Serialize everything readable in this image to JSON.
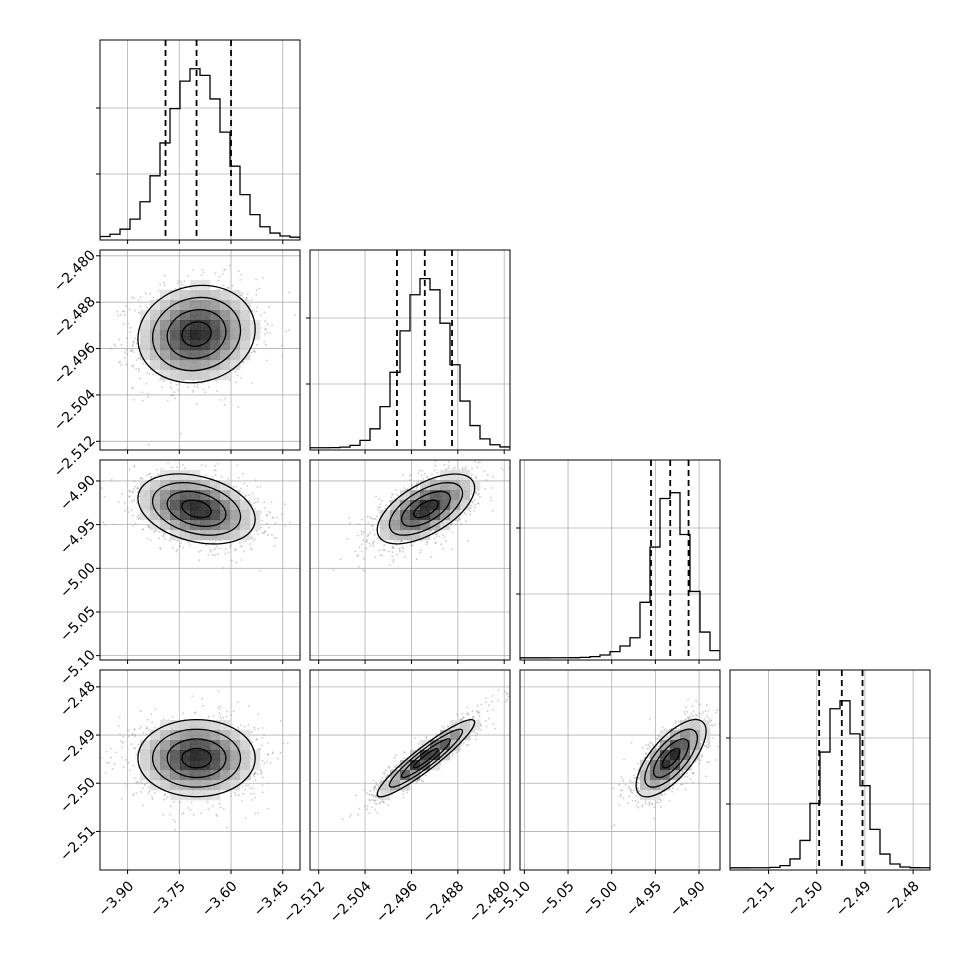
{
  "chart_data": {
    "type": "corner",
    "grid": true,
    "colors": {
      "ink": "#000000",
      "grid": "#b0b0b0",
      "scatter": "#8c8c8c"
    },
    "params": [
      {
        "range": [
          -3.98,
          -3.4
        ],
        "ticks": [
          -3.9,
          -3.75,
          -3.6,
          -3.45
        ],
        "tick_labels": [
          "−3.90",
          "−3.75",
          "−3.60",
          "−3.45"
        ],
        "mean": -3.7,
        "sd": 0.085,
        "quantiles": [
          -3.79,
          -3.7,
          -3.6
        ]
      },
      {
        "range": [
          -2.5135,
          -2.479
        ],
        "ticks": [
          -2.512,
          -2.504,
          -2.496,
          -2.488,
          -2.48
        ],
        "tick_labels": [
          "−2.512",
          "−2.504",
          "−2.496",
          "−2.488",
          "−2.480"
        ],
        "mean": -2.4935,
        "sd": 0.0042,
        "quantiles": [
          -2.4985,
          -2.4937,
          -2.489
        ]
      },
      {
        "range": [
          -5.105,
          -4.876
        ],
        "ticks": [
          -5.1,
          -5.05,
          -5.0,
          -4.95,
          -4.9
        ],
        "tick_labels": [
          "−5.10",
          "−5.05",
          "−5.00",
          "−4.95",
          "−4.90"
        ],
        "mean": -4.932,
        "sd": 0.02,
        "quantiles": [
          -4.955,
          -4.933,
          -4.912
        ]
      },
      {
        "range": [
          -2.518,
          -2.4765
        ],
        "ticks": [
          -2.51,
          -2.5,
          -2.49,
          -2.48
        ],
        "tick_labels": [
          "−2.51",
          "−2.50",
          "−2.49",
          "−2.48"
        ],
        "mean": -2.4948,
        "sd": 0.004,
        "quantiles": [
          -2.4995,
          -2.4948,
          -2.4905
        ]
      }
    ],
    "correlations": [
      {
        "x": 0,
        "y": 1,
        "rho": 0.1
      },
      {
        "x": 0,
        "y": 2,
        "rho": -0.3
      },
      {
        "x": 1,
        "y": 2,
        "rho": 0.6
      },
      {
        "x": 0,
        "y": 3,
        "rho": 0.0
      },
      {
        "x": 1,
        "y": 3,
        "rho": 0.93
      },
      {
        "x": 2,
        "y": 3,
        "rho": 0.7
      }
    ],
    "histogram_bins": 20,
    "contour_levels": 4
  }
}
